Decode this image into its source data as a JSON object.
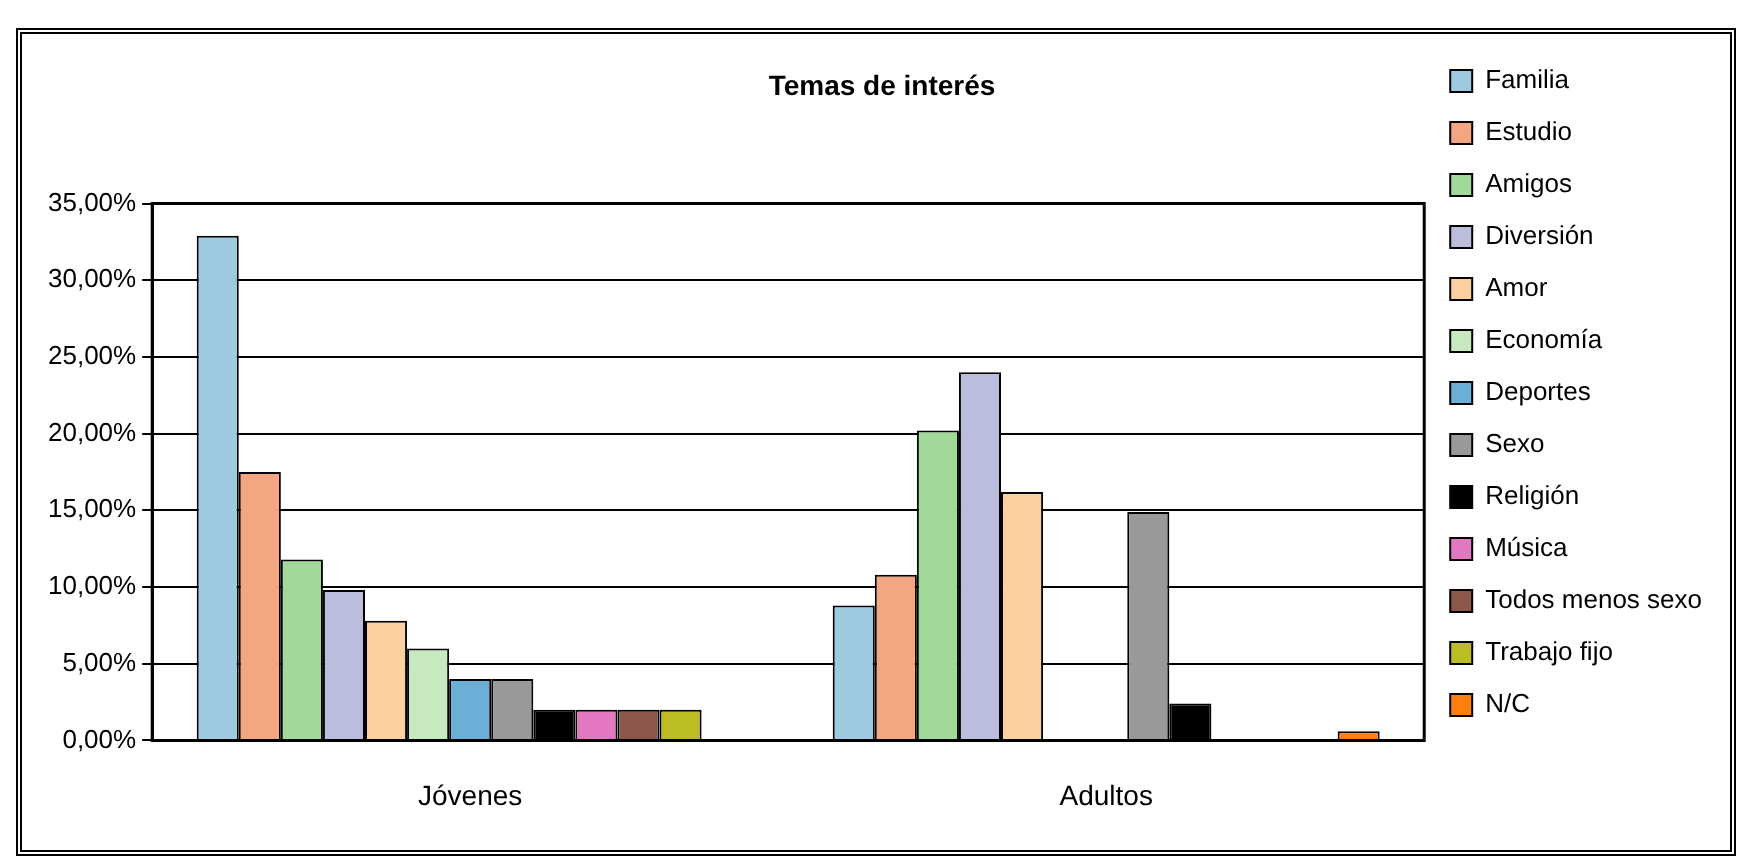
{
  "chart_data": {
    "type": "bar",
    "title": "Temas de interés",
    "categories": [
      "Jóvenes",
      "Adultos"
    ],
    "series": [
      {
        "name": "Familia",
        "color": "#9ecae1",
        "values": [
          32.9,
          8.8
        ]
      },
      {
        "name": "Estudio",
        "color": "#f4a582",
        "values": [
          17.5,
          10.8
        ]
      },
      {
        "name": "Amigos",
        "color": "#a1d99b",
        "values": [
          11.8,
          20.2
        ]
      },
      {
        "name": "Diversión",
        "color": "#bcbddc",
        "values": [
          9.8,
          24.0
        ]
      },
      {
        "name": "Amor",
        "color": "#fdd0a2",
        "values": [
          7.8,
          16.2
        ]
      },
      {
        "name": "Economía",
        "color": "#c7e9c0",
        "values": [
          6.0,
          0
        ]
      },
      {
        "name": "Deportes",
        "color": "#6baed6",
        "values": [
          4.0,
          0
        ]
      },
      {
        "name": "Sexo",
        "color": "#999999",
        "values": [
          4.0,
          14.9
        ]
      },
      {
        "name": "Religión",
        "color": "#000000",
        "values": [
          2.0,
          2.4
        ]
      },
      {
        "name": "Música",
        "color": "#e377c2",
        "values": [
          2.0,
          0
        ]
      },
      {
        "name": "Todos menos sexo",
        "color": "#8c564b",
        "values": [
          2.0,
          0
        ]
      },
      {
        "name": "Trabajo fijo",
        "color": "#bcbd22",
        "values": [
          2.0,
          0
        ]
      },
      {
        "name": "N/C",
        "color": "#ff7f0e",
        "values": [
          0,
          0.6
        ]
      }
    ],
    "ylim": [
      0,
      35
    ],
    "yticks": [
      {
        "value": 0,
        "label": "0,00%"
      },
      {
        "value": 5,
        "label": "5,00%"
      },
      {
        "value": 10,
        "label": "10,00%"
      },
      {
        "value": 15,
        "label": "15,00%"
      },
      {
        "value": 20,
        "label": "20,00%"
      },
      {
        "value": 25,
        "label": "25,00%"
      },
      {
        "value": 30,
        "label": "30,00%"
      },
      {
        "value": 35,
        "label": "35,00%"
      }
    ],
    "grid": "y",
    "legend": "right"
  }
}
